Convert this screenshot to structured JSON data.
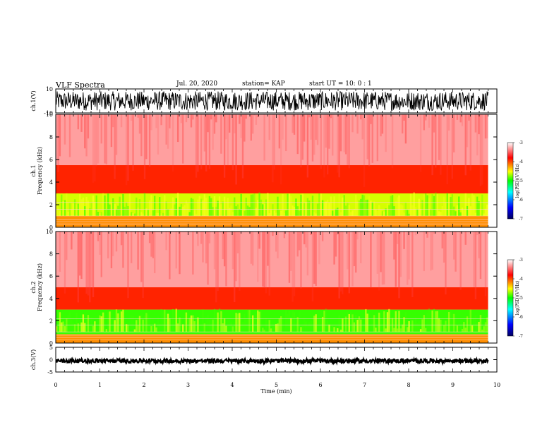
{
  "header": {
    "title": "VLF Spectra",
    "date": "Jul. 20, 2020",
    "station": "station= KAP",
    "start_ut": "start UT =  10: 0  : 1"
  },
  "colors": {
    "spectrogram_low": "#000080",
    "spectrogram_mid_low": "#0000ff",
    "spectrogram_mid": "#00ff00",
    "spectrogram_mid_high": "#ffff00",
    "spectrogram_high": "#ff0000",
    "spectrogram_top": "#ffffff",
    "waveform": "#000000"
  },
  "chart_data": [
    {
      "type": "line",
      "panel": "ch.1 waveform",
      "ylabel": "ch.1(V)",
      "yticks": [
        "10",
        "-10"
      ],
      "ylim": [
        -10,
        10
      ],
      "xlim": [
        0,
        10
      ],
      "note_values": "dense oscillating signal filling roughly -8 to 8 V over 0–9.8 min"
    },
    {
      "type": "heatmap",
      "panel": "ch.1 spectrogram",
      "ylabel": "ch.1\nFrequency (kHz)",
      "yticks": [
        "0",
        "2",
        "4",
        "6",
        "8",
        "10"
      ],
      "ylim": [
        0,
        10
      ],
      "xlim": [
        0,
        10
      ],
      "data_end_min": 9.8,
      "colorbar": {
        "label": "log(PSD)(V²/Hz)",
        "ticks": [
          "-3",
          "-4",
          "-5",
          "-6",
          "-7"
        ],
        "range": [
          -7,
          -3
        ]
      },
      "bands": [
        {
          "f_lo": 0.0,
          "f_hi": 1.0,
          "level": -4.2
        },
        {
          "f_lo": 1.0,
          "f_hi": 3.0,
          "level": -4.6
        },
        {
          "f_lo": 3.0,
          "f_hi": 5.5,
          "level": -3.9
        },
        {
          "f_lo": 5.5,
          "f_hi": 10.0,
          "level": -3.3
        }
      ]
    },
    {
      "type": "heatmap",
      "panel": "ch.2 spectrogram",
      "ylabel": "ch.2\nFrequency (kHz)",
      "yticks": [
        "0",
        "2",
        "4",
        "6",
        "8",
        "10"
      ],
      "ylim": [
        0,
        10
      ],
      "xlim": [
        0,
        10
      ],
      "data_end_min": 9.8,
      "colorbar": {
        "label": "log(PSD)(V²/Hz)",
        "ticks": [
          "-3",
          "-4",
          "-5",
          "-6",
          "-7"
        ],
        "range": [
          -7,
          -3
        ]
      },
      "bands": [
        {
          "f_lo": 0.0,
          "f_hi": 0.8,
          "level": -4.2
        },
        {
          "f_lo": 0.8,
          "f_hi": 3.0,
          "level": -4.9
        },
        {
          "f_lo": 3.0,
          "f_hi": 5.0,
          "level": -3.9
        },
        {
          "f_lo": 5.0,
          "f_hi": 10.0,
          "level": -3.3
        }
      ]
    },
    {
      "type": "line",
      "panel": "ch.3 waveform",
      "ylabel": "ch.3(V)",
      "yticks": [
        "5",
        "0",
        "-5"
      ],
      "ylim": [
        -5,
        5
      ],
      "xlim": [
        0,
        10
      ],
      "xlabel": "Time (min)",
      "xticks": [
        "0",
        "1",
        "2",
        "3",
        "4",
        "5",
        "6",
        "7",
        "8",
        "9",
        "10"
      ],
      "note_values": "flat signal near 0 V with small amplitude over 0–9.8 min"
    }
  ]
}
